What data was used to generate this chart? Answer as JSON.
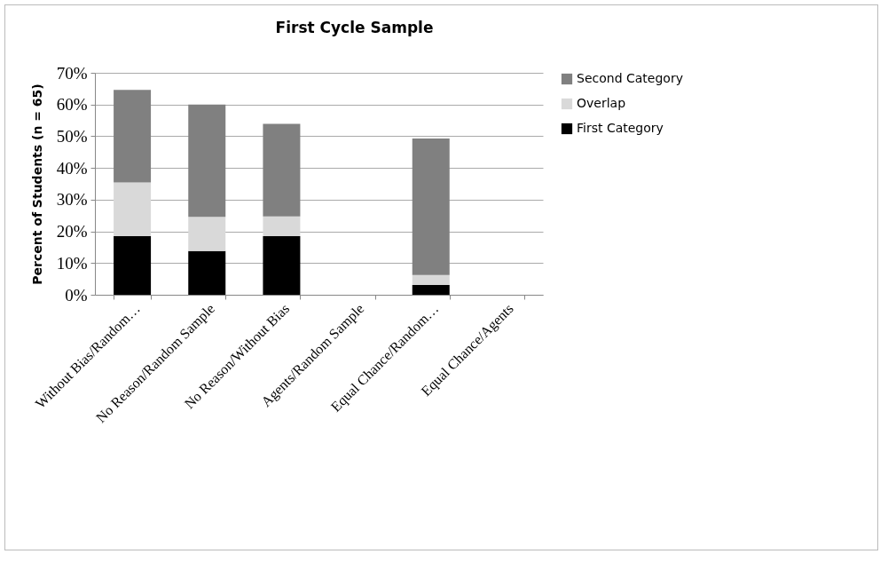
{
  "chart_data": {
    "type": "bar",
    "title": "First Cycle Sample",
    "ylabel": "Percent of Students (n = 65)",
    "categories": [
      "Without Bias/Random…",
      "No Reason/Random Sample",
      "No Reason/Without Bias",
      "Agents/Random Sample",
      "Equal Chance/Random…",
      "Equal Chance/Agents"
    ],
    "series": [
      {
        "name": "First Category",
        "color": "#000000",
        "values": [
          18.5,
          13.8,
          18.5,
          0,
          3.1,
          0
        ]
      },
      {
        "name": "Overlap",
        "color": "#d9d9d9",
        "values": [
          16.9,
          10.8,
          6.2,
          0,
          3.1,
          0
        ]
      },
      {
        "name": "Second Category",
        "color": "#808080",
        "values": [
          29.2,
          35.4,
          29.2,
          0,
          43.1,
          0
        ]
      }
    ],
    "stacked": true,
    "ylim": [
      0,
      70
    ],
    "yticks": [
      {
        "value": 0,
        "label": "0%"
      },
      {
        "value": 10,
        "label": "10%"
      },
      {
        "value": 20,
        "label": "20%"
      },
      {
        "value": 30,
        "label": "30%"
      },
      {
        "value": 40,
        "label": "40%"
      },
      {
        "value": 50,
        "label": "50%"
      },
      {
        "value": 60,
        "label": "60%"
      },
      {
        "value": 70,
        "label": "70%"
      }
    ],
    "grid": "y",
    "legend": "right"
  }
}
